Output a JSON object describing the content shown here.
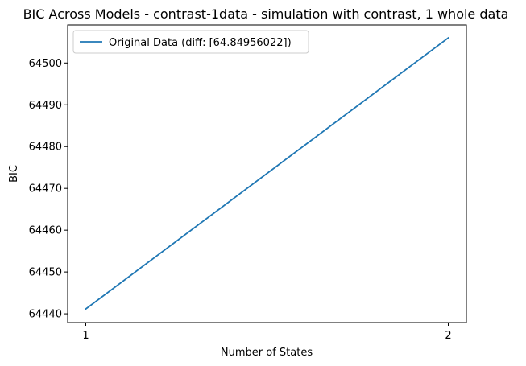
{
  "chart_data": {
    "type": "line",
    "title": "BIC Across Models - contrast-1data - simulation with contrast, 1 whole data",
    "xlabel": "Number of States",
    "ylabel": "BIC",
    "x": [
      1,
      2
    ],
    "x_ticks": [
      1,
      2
    ],
    "x_tick_labels": [
      "1",
      "2"
    ],
    "xlim": [
      0.95,
      2.05
    ],
    "y_ticks": [
      64440,
      64450,
      64460,
      64470,
      64480,
      64490,
      64500
    ],
    "y_tick_labels": [
      "64440",
      "64450",
      "64460",
      "64470",
      "64480",
      "64490",
      "64500"
    ],
    "ylim": [
      64437.9,
      64509.1
    ],
    "series": [
      {
        "name": "Original Data (diff: [64.84956022])",
        "values": [
          64441.15,
          64506.0
        ],
        "color": "#1f77b4"
      }
    ],
    "grid": false,
    "legend_position": "top-left"
  }
}
